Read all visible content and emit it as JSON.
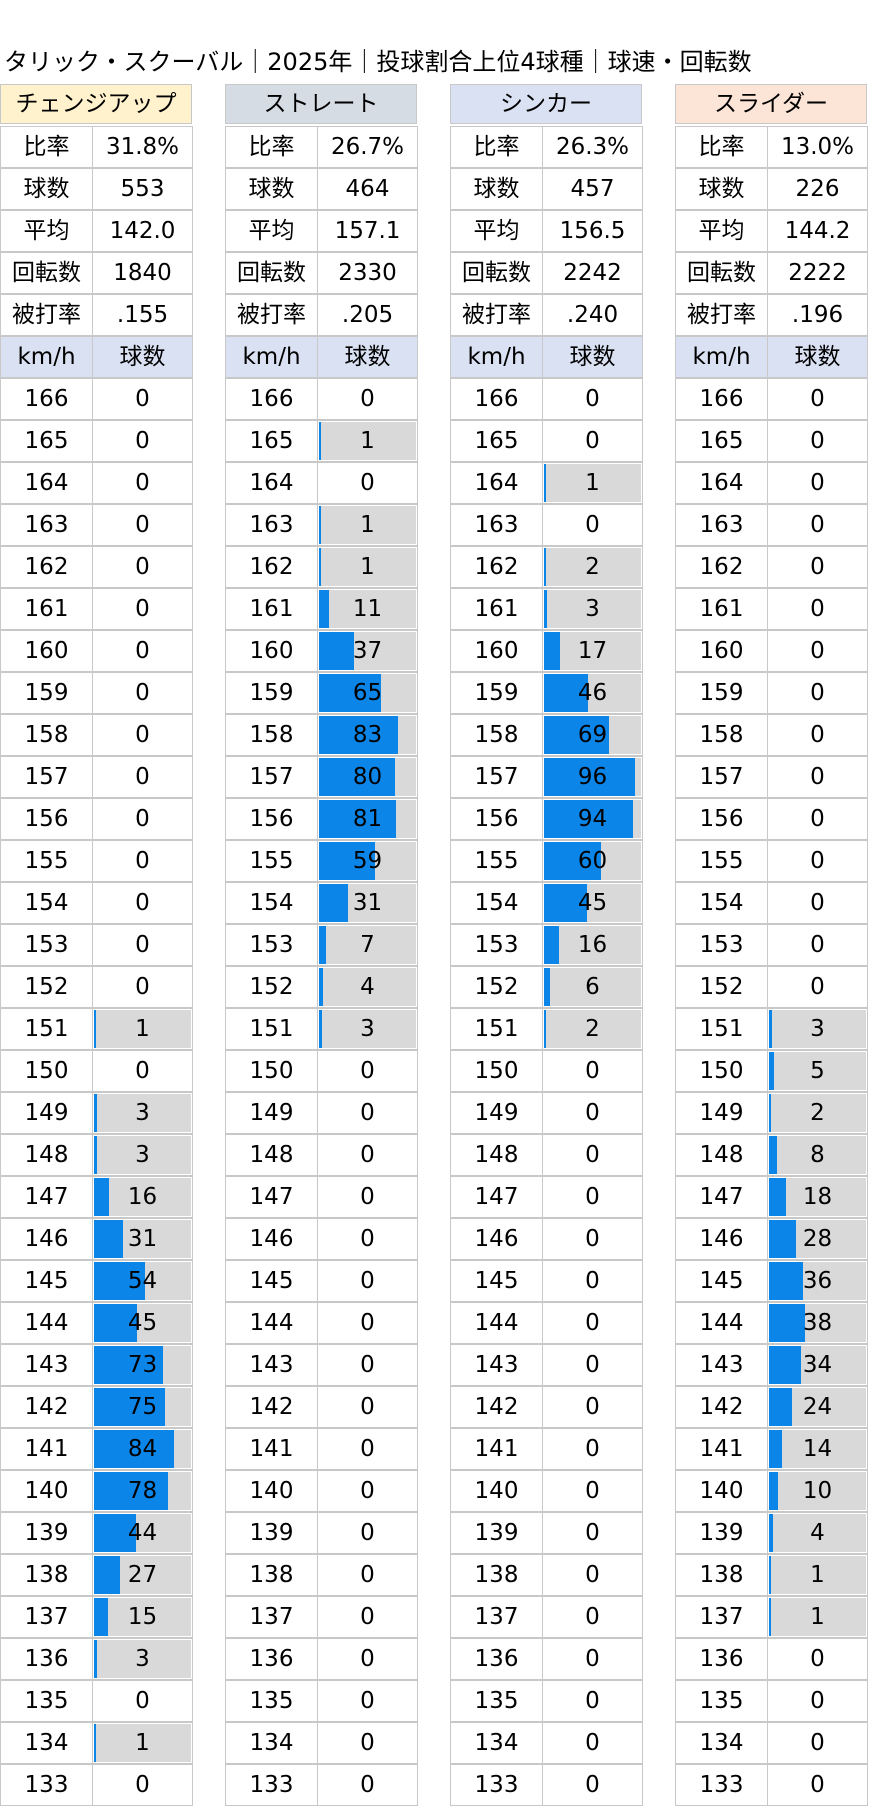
{
  "title": "タリック・スクーバル｜2025年｜投球割合上位4球種｜球速・回転数",
  "chart_data": {
    "type": "table",
    "title": "タリック・スクーバル｜2025年｜投球割合上位4球種｜球速・回転数",
    "stat_labels": [
      "比率",
      "球数",
      "平均",
      "回転数",
      "被打率"
    ],
    "column_headers": [
      "km/h",
      "球数"
    ],
    "speeds": [
      166,
      165,
      164,
      163,
      162,
      161,
      160,
      159,
      158,
      157,
      156,
      155,
      154,
      153,
      152,
      151,
      150,
      149,
      148,
      147,
      146,
      145,
      144,
      143,
      142,
      141,
      140,
      139,
      138,
      137,
      136,
      135,
      134,
      133
    ],
    "max_count": 96,
    "pitches": [
      {
        "name": "チェンジアップ",
        "header_color": "#fff2cc",
        "stats": [
          "31.8%",
          "553",
          "142.0",
          "1840",
          ".155"
        ],
        "counts": [
          0,
          0,
          0,
          0,
          0,
          0,
          0,
          0,
          0,
          0,
          0,
          0,
          0,
          0,
          0,
          1,
          0,
          3,
          3,
          16,
          31,
          54,
          45,
          73,
          75,
          84,
          78,
          44,
          27,
          15,
          3,
          0,
          1,
          0
        ]
      },
      {
        "name": "ストレート",
        "header_color": "#d6dce4",
        "stats": [
          "26.7%",
          "464",
          "157.1",
          "2330",
          ".205"
        ],
        "counts": [
          0,
          1,
          0,
          1,
          1,
          11,
          37,
          65,
          83,
          80,
          81,
          59,
          31,
          7,
          4,
          3,
          0,
          0,
          0,
          0,
          0,
          0,
          0,
          0,
          0,
          0,
          0,
          0,
          0,
          0,
          0,
          0,
          0,
          0
        ]
      },
      {
        "name": "シンカー",
        "header_color": "#d9e1f2",
        "stats": [
          "26.3%",
          "457",
          "156.5",
          "2242",
          ".240"
        ],
        "counts": [
          0,
          0,
          1,
          0,
          2,
          3,
          17,
          46,
          69,
          96,
          94,
          60,
          45,
          16,
          6,
          2,
          0,
          0,
          0,
          0,
          0,
          0,
          0,
          0,
          0,
          0,
          0,
          0,
          0,
          0,
          0,
          0,
          0,
          0
        ]
      },
      {
        "name": "スライダー",
        "header_color": "#fce4d6",
        "stats": [
          "13.0%",
          "226",
          "144.2",
          "2222",
          ".196"
        ],
        "counts": [
          0,
          0,
          0,
          0,
          0,
          0,
          0,
          0,
          0,
          0,
          0,
          0,
          0,
          0,
          0,
          3,
          5,
          2,
          8,
          18,
          28,
          36,
          38,
          34,
          24,
          14,
          10,
          4,
          1,
          1,
          0,
          0,
          0,
          0
        ]
      }
    ]
  }
}
